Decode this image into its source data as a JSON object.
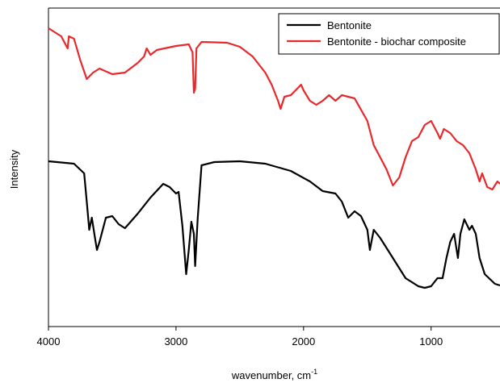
{
  "chart_data": {
    "type": "line",
    "x_label": "wavenumber, cm",
    "x_label_superscript": "-1",
    "y_label": "Intensity",
    "xlim": [
      4000,
      460
    ],
    "xticks": [
      4000,
      3000,
      2000,
      1000
    ],
    "ylim": [
      0,
      395
    ],
    "legend": "upper right",
    "series": [
      {
        "name": "Bentonite",
        "color": "#000000",
        "x": [
          4000,
          3800,
          3720,
          3700,
          3680,
          3660,
          3640,
          3620,
          3600,
          3550,
          3500,
          3450,
          3400,
          3300,
          3200,
          3100,
          3050,
          3000,
          2980,
          2950,
          2920,
          2900,
          2880,
          2860,
          2850,
          2830,
          2800,
          2700,
          2500,
          2300,
          2100,
          1950,
          1850,
          1750,
          1700,
          1650,
          1600,
          1550,
          1500,
          1480,
          1450,
          1400,
          1300,
          1200,
          1100,
          1050,
          1000,
          950,
          910,
          880,
          850,
          820,
          790,
          770,
          740,
          700,
          680,
          650,
          620,
          580,
          500,
          460
        ],
        "values": [
          205,
          202,
          190,
          155,
          120,
          135,
          115,
          95,
          105,
          135,
          137,
          127,
          122,
          140,
          160,
          177,
          173,
          165,
          167,
          125,
          65,
          95,
          130,
          115,
          75,
          135,
          200,
          204,
          205,
          202,
          193,
          180,
          168,
          165,
          155,
          135,
          143,
          137,
          120,
          95,
          120,
          110,
          85,
          60,
          50,
          48,
          50,
          60,
          60,
          85,
          105,
          115,
          85,
          115,
          133,
          120,
          125,
          115,
          85,
          65,
          53,
          51
        ]
      },
      {
        "name": "Bentonite - biochar composite",
        "color": "#e8282b",
        "x": [
          4000,
          3900,
          3850,
          3840,
          3800,
          3750,
          3700,
          3650,
          3600,
          3500,
          3400,
          3300,
          3250,
          3230,
          3200,
          3150,
          3000,
          2900,
          2870,
          2860,
          2850,
          2840,
          2800,
          2600,
          2500,
          2400,
          2300,
          2250,
          2200,
          2180,
          2150,
          2100,
          2050,
          2020,
          2000,
          1950,
          1900,
          1850,
          1800,
          1750,
          1700,
          1600,
          1500,
          1450,
          1400,
          1350,
          1300,
          1250,
          1200,
          1150,
          1100,
          1050,
          1000,
          950,
          930,
          900,
          850,
          800,
          750,
          700,
          650,
          620,
          600,
          560,
          520,
          480,
          460
        ],
        "values": [
          370,
          360,
          345,
          360,
          357,
          330,
          307,
          315,
          320,
          313,
          315,
          327,
          335,
          345,
          337,
          343,
          348,
          350,
          340,
          290,
          295,
          345,
          353,
          352,
          347,
          335,
          315,
          300,
          280,
          270,
          285,
          287,
          295,
          300,
          293,
          280,
          275,
          280,
          287,
          280,
          287,
          283,
          255,
          225,
          210,
          195,
          175,
          185,
          210,
          230,
          235,
          250,
          255,
          240,
          233,
          245,
          240,
          230,
          225,
          215,
          195,
          180,
          190,
          173,
          170,
          180,
          177
        ]
      }
    ]
  }
}
